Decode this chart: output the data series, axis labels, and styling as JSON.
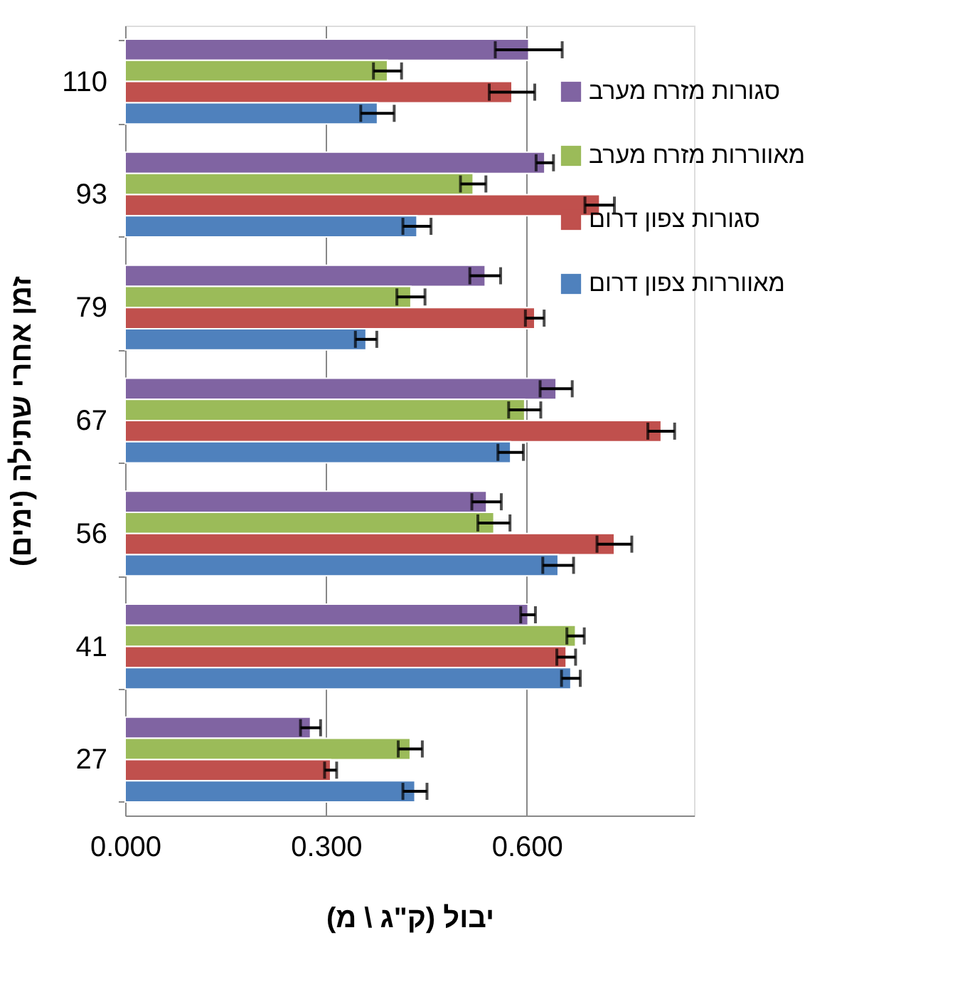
{
  "chart_data": {
    "type": "bar",
    "orientation": "horizontal",
    "xlabel": "יבול (ק\"ג \\ מ)",
    "ylabel": "זמן אחרי שתילה (ימים)",
    "categories": [
      "110",
      "93",
      "79",
      "67",
      "56",
      "41",
      "27"
    ],
    "series": [
      {
        "name": "סגורות מזרח מערב",
        "color": "#8064a2",
        "values": [
          0.603,
          0.627,
          0.538,
          0.644,
          0.54,
          0.602,
          0.277
        ],
        "errors": [
          0.05,
          0.013,
          0.023,
          0.024,
          0.022,
          0.011,
          0.015
        ]
      },
      {
        "name": "מאווררות מזרח מערב",
        "color": "#9bbb59",
        "values": [
          0.392,
          0.52,
          0.427,
          0.597,
          0.551,
          0.673,
          0.426
        ],
        "errors": [
          0.021,
          0.019,
          0.021,
          0.024,
          0.024,
          0.013,
          0.018
        ]
      },
      {
        "name": "סגורות צפון דרום",
        "color": "#c0504d",
        "values": [
          0.578,
          0.709,
          0.612,
          0.801,
          0.731,
          0.659,
          0.307
        ],
        "errors": [
          0.034,
          0.022,
          0.014,
          0.02,
          0.026,
          0.014,
          0.009
        ]
      },
      {
        "name": "מאווררות צפון דרום",
        "color": "#4f81bd",
        "values": [
          0.377,
          0.436,
          0.36,
          0.576,
          0.647,
          0.666,
          0.433
        ],
        "errors": [
          0.025,
          0.021,
          0.016,
          0.019,
          0.023,
          0.014,
          0.018
        ]
      }
    ],
    "xlim": [
      0,
      0.85
    ],
    "xticks": [
      {
        "value": 0,
        "label": "0.000"
      },
      {
        "value": 0.3,
        "label": "0.300"
      },
      {
        "value": 0.6,
        "label": "0.600"
      }
    ],
    "grid": "x",
    "legend": "top right"
  }
}
